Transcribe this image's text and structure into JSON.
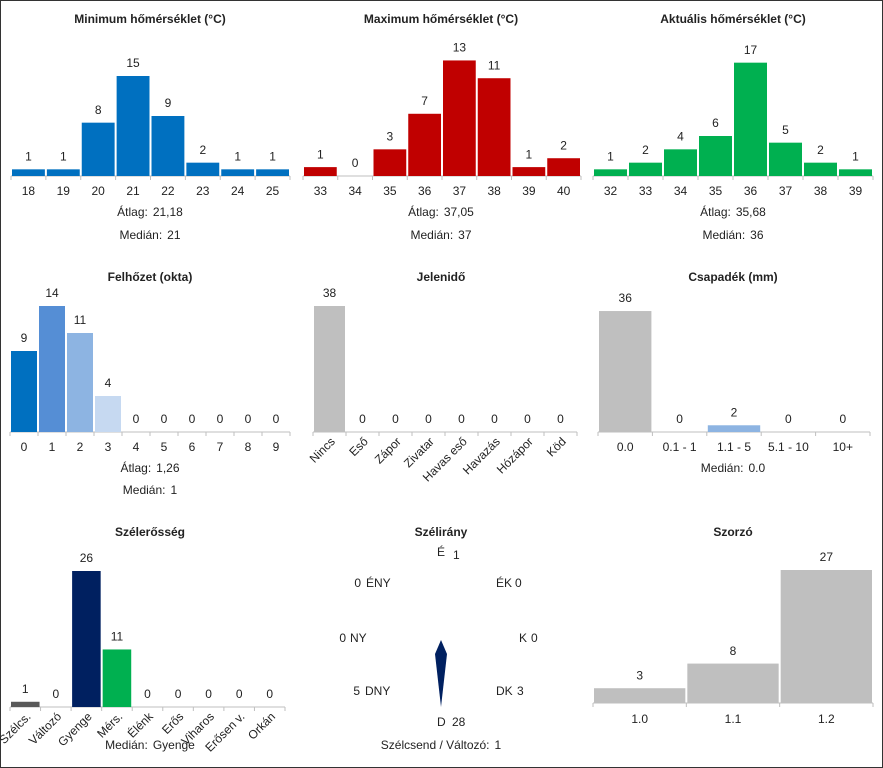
{
  "chart_data": [
    {
      "type": "bar",
      "title": "Minimum hőmérséklet (°C)",
      "categories": [
        "18",
        "19",
        "20",
        "21",
        "22",
        "23",
        "24",
        "25"
      ],
      "values": [
        1,
        1,
        8,
        15,
        9,
        2,
        1,
        1
      ],
      "color": "#0070c0",
      "ylim": [
        0,
        18
      ],
      "stats": [
        {
          "label": "Átlag:",
          "value": "21,18"
        },
        {
          "label": "Medián:",
          "value": "21"
        }
      ]
    },
    {
      "type": "bar",
      "title": "Maximum hőmérséklet (°C)",
      "categories": [
        "33",
        "34",
        "35",
        "36",
        "37",
        "38",
        "39",
        "40"
      ],
      "values": [
        1,
        0,
        3,
        7,
        13,
        11,
        1,
        2
      ],
      "color": "#c00000",
      "ylim": [
        0,
        13.5
      ],
      "stats": [
        {
          "label": "Átlag:",
          "value": "37,05"
        },
        {
          "label": "Medián:",
          "value": "37"
        }
      ]
    },
    {
      "type": "bar",
      "title": "Aktuális hőmérséklet (°C)",
      "categories": [
        "32",
        "33",
        "34",
        "35",
        "36",
        "37",
        "38",
        "39"
      ],
      "values": [
        1,
        2,
        4,
        6,
        17,
        5,
        2,
        1
      ],
      "color": "#00b050",
      "ylim": [
        0,
        18
      ],
      "stats": [
        {
          "label": "Átlag:",
          "value": "35,68"
        },
        {
          "label": "Medián:",
          "value": "36"
        }
      ]
    },
    {
      "type": "bar",
      "title": "Felhőzet (okta)",
      "categories": [
        "0",
        "1",
        "2",
        "3",
        "4",
        "5",
        "6",
        "7",
        "8",
        "9"
      ],
      "values": [
        9,
        14,
        11,
        4,
        0,
        0,
        0,
        0,
        0,
        0
      ],
      "colors": [
        "#0070c0",
        "#558ed5",
        "#8db4e2",
        "#c6d9f1",
        "#c6d9f1",
        "#c6d9f1",
        "#c6d9f1",
        "#c6d9f1",
        "#c6d9f1",
        "#c6d9f1"
      ],
      "ylim": [
        0,
        14
      ],
      "stats": [
        {
          "label": "Átlag:",
          "value": "1,26"
        },
        {
          "label": "Medián:",
          "value": "1"
        }
      ]
    },
    {
      "type": "bar",
      "title": "Jelenidő",
      "categories": [
        "Nincs",
        "Eső",
        "Zápor",
        "Zivatar",
        "Havas eső",
        "Havazás",
        "Hózápor",
        "Köd"
      ],
      "values": [
        38,
        0,
        0,
        0,
        0,
        0,
        0,
        0
      ],
      "color": "#bfbfbf",
      "ylim": [
        0,
        38
      ],
      "rotate_labels": true
    },
    {
      "type": "bar",
      "title": "Csapadék (mm)",
      "categories": [
        "0.0",
        "0.1 - 1",
        "1.1 - 5",
        "5.1 - 10",
        "10+"
      ],
      "values": [
        36,
        0,
        2,
        0,
        0
      ],
      "colors": [
        "#bfbfbf",
        "#bfbfbf",
        "#8db4e2",
        "#bfbfbf",
        "#bfbfbf"
      ],
      "ylim": [
        0,
        37.5
      ],
      "stats": [
        {
          "label": "Medián:",
          "value": "0.0"
        }
      ]
    },
    {
      "type": "bar",
      "title": "Szélerősség",
      "categories": [
        "Szélcs.",
        "Változó",
        "Gyenge",
        "Mérs.",
        "Élénk",
        "Erős",
        "Viharos",
        "Erősen v.",
        "Orkán"
      ],
      "values": [
        1,
        0,
        26,
        11,
        0,
        0,
        0,
        0,
        0
      ],
      "colors": [
        "#595959",
        "#bfbfbf",
        "#002060",
        "#00b050",
        "#bfbfbf",
        "#bfbfbf",
        "#bfbfbf",
        "#bfbfbf",
        "#bfbfbf"
      ],
      "ylim": [
        0,
        26
      ],
      "rotate_labels": true,
      "stats": [
        {
          "label": "Medián:",
          "value": "Gyenge"
        }
      ]
    },
    {
      "type": "compass",
      "title": "Szélirány",
      "directions": [
        "É",
        "ÉK",
        "K",
        "DK",
        "D",
        "DNY",
        "NY",
        "ÉNY"
      ],
      "values": [
        1,
        0,
        0,
        3,
        28,
        5,
        0,
        0
      ],
      "stats": [
        {
          "label": "Szélcsend / Változó:",
          "value": "1"
        }
      ]
    },
    {
      "type": "bar",
      "title": "Szorzó",
      "categories": [
        "1.0",
        "1.1",
        "1.2"
      ],
      "values": [
        3,
        8,
        27
      ],
      "color": "#bfbfbf",
      "ylim": [
        0,
        27
      ]
    }
  ]
}
